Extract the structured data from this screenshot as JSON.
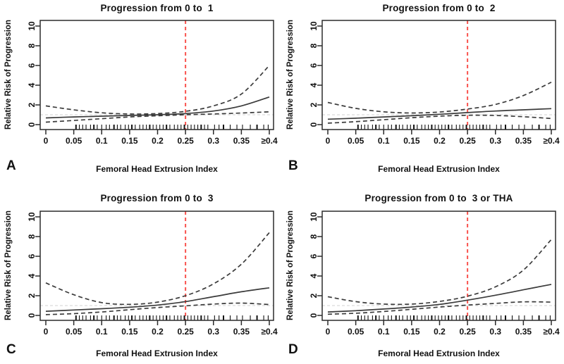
{
  "figure": {
    "background": "#ffffff",
    "layout": {
      "rows": 2,
      "cols": 2,
      "grid": false,
      "legend": "none"
    }
  },
  "shared": {
    "colors": {
      "curve": "#3b3b3b",
      "vline": "#f9534e",
      "hline": "#d9d9d9",
      "axis": "#2b2b2b",
      "text": "#111111"
    },
    "rug_x": [
      0.054,
      0.06,
      0.066,
      0.072,
      0.08,
      0.086,
      0.092,
      0.1,
      0.108,
      0.114,
      0.122,
      0.128,
      0.134,
      0.142,
      0.148,
      0.154,
      0.16,
      0.168,
      0.174,
      0.18,
      0.186,
      0.192,
      0.198,
      0.204,
      0.21,
      0.216,
      0.222,
      0.23,
      0.236,
      0.242,
      0.248,
      0.254,
      0.26,
      0.266,
      0.272,
      0.278,
      0.284,
      0.29,
      0.302,
      0.31,
      0.318,
      0.33,
      0.342,
      0.352,
      0.366,
      0.378,
      0.39,
      0.398
    ]
  },
  "chart_data": [
    {
      "type": "line",
      "panel_letter": "A",
      "title": "Progression from 0 to  1",
      "xlabel": "Femoral Head Extrusion Index",
      "ylabel": "Relative Risk of Progression",
      "x": [
        0,
        0.05,
        0.1,
        0.15,
        0.2,
        0.25,
        0.3,
        0.35,
        0.4
      ],
      "xtick_labels": [
        "0",
        "0.05",
        "0.1",
        "0.15",
        "0.2",
        "0.25",
        "0.3",
        "0.35",
        "≥0.4"
      ],
      "yticks": [
        0,
        2,
        4,
        6,
        8,
        10
      ],
      "ylim": [
        0,
        10
      ],
      "series": [
        {
          "name": "relative-risk-estimate",
          "style": "solid",
          "values": [
            0.68,
            0.78,
            0.86,
            0.93,
            1.0,
            1.12,
            1.38,
            1.9,
            2.8
          ]
        },
        {
          "name": "upper-95ci",
          "style": "dashed",
          "values": [
            1.9,
            1.5,
            1.2,
            1.08,
            1.12,
            1.35,
            1.9,
            3.1,
            6.0
          ]
        },
        {
          "name": "lower-95ci",
          "style": "dashed",
          "values": [
            0.25,
            0.42,
            0.6,
            0.78,
            0.9,
            1.0,
            1.08,
            1.18,
            1.3
          ]
        }
      ],
      "reference_lines": {
        "vertical_x": 0.25,
        "horizontal_y": 1.0
      }
    },
    {
      "type": "line",
      "panel_letter": "B",
      "title": "Progression from 0 to  2",
      "xlabel": "Femoral Head Extrusion Index",
      "ylabel": "Relative Risk of Progression",
      "x": [
        0,
        0.05,
        0.1,
        0.15,
        0.2,
        0.25,
        0.3,
        0.35,
        0.4
      ],
      "xtick_labels": [
        "0",
        "0.05",
        "0.1",
        "0.15",
        "0.2",
        "0.25",
        "0.3",
        "0.35",
        "≥0.4"
      ],
      "yticks": [
        0,
        2,
        4,
        6,
        8,
        10
      ],
      "ylim": [
        0,
        10
      ],
      "series": [
        {
          "name": "relative-risk-estimate",
          "style": "solid",
          "values": [
            0.55,
            0.65,
            0.78,
            0.9,
            1.05,
            1.22,
            1.38,
            1.5,
            1.62
          ]
        },
        {
          "name": "upper-95ci",
          "style": "dashed",
          "values": [
            2.25,
            1.65,
            1.3,
            1.18,
            1.28,
            1.58,
            2.05,
            2.95,
            4.3
          ]
        },
        {
          "name": "lower-95ci",
          "style": "dashed",
          "values": [
            0.15,
            0.3,
            0.5,
            0.7,
            0.86,
            0.95,
            0.93,
            0.8,
            0.62
          ]
        }
      ],
      "reference_lines": {
        "vertical_x": 0.25,
        "horizontal_y": 1.0
      }
    },
    {
      "type": "line",
      "panel_letter": "C",
      "title": "Progression from 0 to  3",
      "xlabel": "Femoral Head Extrusion Index",
      "ylabel": "Relative Risk of Progression",
      "x": [
        0,
        0.05,
        0.1,
        0.15,
        0.2,
        0.25,
        0.3,
        0.35,
        0.4
      ],
      "xtick_labels": [
        "0",
        "0.05",
        "0.1",
        "0.15",
        "0.2",
        "0.25",
        "0.3",
        "0.35",
        "≥0.4"
      ],
      "yticks": [
        0,
        2,
        4,
        6,
        8,
        10
      ],
      "ylim": [
        0,
        10
      ],
      "series": [
        {
          "name": "relative-risk-estimate",
          "style": "solid",
          "values": [
            0.42,
            0.55,
            0.68,
            0.83,
            1.05,
            1.4,
            1.9,
            2.4,
            2.8
          ]
        },
        {
          "name": "upper-95ci",
          "style": "dashed",
          "values": [
            3.3,
            2.1,
            1.3,
            1.12,
            1.35,
            2.0,
            3.2,
            5.2,
            8.4
          ]
        },
        {
          "name": "lower-95ci",
          "style": "dashed",
          "values": [
            0.08,
            0.18,
            0.35,
            0.58,
            0.8,
            0.97,
            1.15,
            1.25,
            1.1
          ]
        }
      ],
      "reference_lines": {
        "vertical_x": 0.25,
        "horizontal_y": 1.0
      }
    },
    {
      "type": "line",
      "panel_letter": "D",
      "title": "Progression from 0 to  3 or THA",
      "xlabel": "Femoral Head Extrusion Index",
      "ylabel": "Relative Risk of Progression",
      "x": [
        0,
        0.05,
        0.1,
        0.15,
        0.2,
        0.25,
        0.3,
        0.35,
        0.4
      ],
      "xtick_labels": [
        "0",
        "0.05",
        "0.1",
        "0.15",
        "0.2",
        "0.25",
        "0.3",
        "0.35",
        "≥0.4"
      ],
      "yticks": [
        0,
        2,
        4,
        6,
        8,
        10
      ],
      "ylim": [
        0,
        10
      ],
      "series": [
        {
          "name": "relative-risk-estimate",
          "style": "solid",
          "values": [
            0.35,
            0.48,
            0.65,
            0.85,
            1.12,
            1.55,
            2.05,
            2.6,
            3.15
          ]
        },
        {
          "name": "upper-95ci",
          "style": "dashed",
          "values": [
            1.9,
            1.4,
            1.15,
            1.15,
            1.42,
            1.95,
            2.9,
            4.6,
            7.7
          ]
        },
        {
          "name": "lower-95ci",
          "style": "dashed",
          "values": [
            0.12,
            0.22,
            0.4,
            0.62,
            0.85,
            1.05,
            1.22,
            1.38,
            1.35
          ]
        }
      ],
      "reference_lines": {
        "vertical_x": 0.25,
        "horizontal_y": 1.0
      }
    }
  ]
}
